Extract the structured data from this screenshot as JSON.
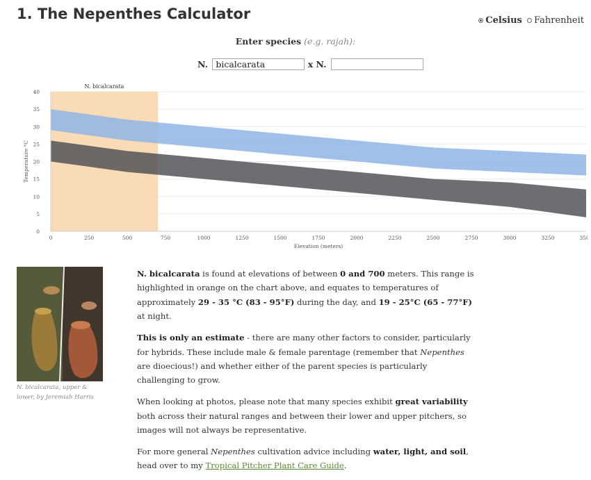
{
  "header": {
    "title": "1. The Nepenthes Calculator",
    "units": {
      "celsius": "Celsius",
      "fahrenheit": "Fahrenheit",
      "selected": "celsius"
    }
  },
  "form": {
    "enter_label": "Enter species",
    "enter_hint": "(e.g. rajah)",
    "colon": ":",
    "prefix1": "N.",
    "species1_value": "bicalcarata",
    "cross": "x N.",
    "species2_value": ""
  },
  "chart_data": {
    "type": "area",
    "xlabel": "Elevation (meters)",
    "ylabel": "Temperature °C",
    "xlim": [
      0,
      3500
    ],
    "ylim": [
      0,
      40
    ],
    "xticks": [
      0,
      250,
      500,
      750,
      1000,
      1250,
      1500,
      1750,
      2000,
      2250,
      2500,
      2750,
      3000,
      3250,
      3500
    ],
    "yticks": [
      0,
      5,
      10,
      15,
      20,
      25,
      30,
      35,
      40
    ],
    "grid": true,
    "highlight": {
      "label": "N. bicalcarata",
      "from": 0,
      "to": 700,
      "color": "#f9dcb5"
    },
    "series": [
      {
        "color": "#8fb5e6",
        "x": [
          0,
          500,
          1000,
          2500,
          3000,
          3500
        ],
        "high": [
          35,
          32,
          30,
          24,
          23,
          22
        ],
        "low": [
          29,
          26,
          24,
          18,
          17,
          16
        ]
      },
      {
        "color": "#555358",
        "x": [
          0,
          500,
          1000,
          2500,
          3000,
          3500
        ],
        "high": [
          26,
          23,
          21,
          15,
          14,
          12
        ],
        "low": [
          20,
          17,
          15,
          9,
          7,
          4
        ]
      }
    ]
  },
  "photo": {
    "caption": "N. bicalcarata, upper & lower, by Jeremiah Harris",
    "colors": {
      "bg": "#4a4136",
      "upper": "#9c7a3a",
      "lower": "#a4583a"
    }
  },
  "description": {
    "p1": {
      "species": "N. bicalcarata",
      "t1": " is found at elevations of between ",
      "range": "0 and 700",
      "t2": " meters. This range is highlighted in orange on the chart above, and equates to temperatures of approximately ",
      "day": "29 - 35 °C (83 - 95°F)",
      "t3": " during the day, and ",
      "night": "19 - 25°C (65 - 77°F)",
      "t4": " at night."
    },
    "p2": {
      "bold": "This is only an estimate",
      "t1": " - there are many other factors to consider, particularly for hybrids. These include male & female parentage (remember that ",
      "italic": "Nepenthes",
      "t2": " are dioecious!) and whether either of the parent species is particularly challenging to grow."
    },
    "p3": {
      "t1": "When looking at photos, please note that many species exhibit ",
      "bold": "great variability",
      "t2": " both across their natural ranges and between their lower and upper pitchers, so images will not always be representative."
    },
    "p4": {
      "t1": "For more general ",
      "italic": "Nepenthes",
      "t2": " cultivation advice including ",
      "bold": "water, light, and soil",
      "t3": ", head over to my ",
      "link": "Tropical Pitcher Plant Care Guide",
      "t4": "."
    }
  }
}
